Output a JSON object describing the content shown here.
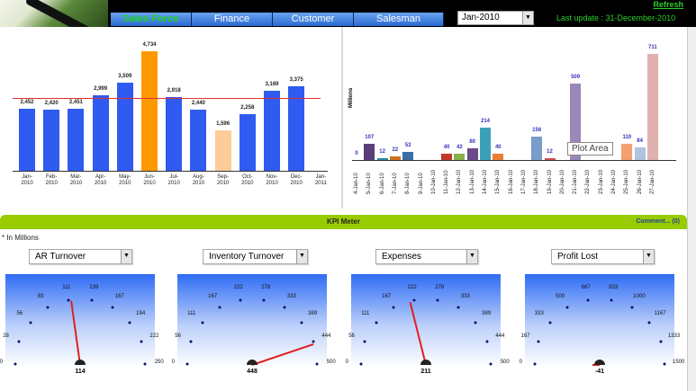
{
  "header": {
    "tabs": [
      {
        "label": "Sales Force",
        "active": true
      },
      {
        "label": "Finance"
      },
      {
        "label": "Customer"
      },
      {
        "label": "Salesman"
      }
    ],
    "month_select": "Jan-2010",
    "refresh_label": "Refresh",
    "last_update": "Last update : 31-December-2010"
  },
  "kpi": {
    "title": "KPI Meter",
    "comment_label": "Comment...",
    "comment_count": "(0)",
    "units_note": "* In Millions",
    "gauges": [
      {
        "select": "AR Turnover",
        "value": "114",
        "ticks": [
          "0",
          "28",
          "56",
          "83",
          "111",
          "139",
          "167",
          "194",
          "222",
          "250"
        ],
        "max": 250,
        "num": 114
      },
      {
        "select": "Inventory Turnover",
        "value": "448",
        "ticks": [
          "0",
          "56",
          "111",
          "167",
          "222",
          "278",
          "333",
          "389",
          "444",
          "500"
        ],
        "max": 500,
        "num": 448
      },
      {
        "select": "Expenses",
        "value": "211",
        "ticks": [
          "0",
          "56",
          "111",
          "167",
          "222",
          "278",
          "333",
          "389",
          "444",
          "500"
        ],
        "max": 500,
        "num": 211
      },
      {
        "select": "Profit Lost",
        "value": "-41",
        "ticks": [
          "0",
          "167",
          "333",
          "500",
          "667",
          "833",
          "1000",
          "1167",
          "1333",
          "1500"
        ],
        "max": 1500,
        "num": -41
      }
    ]
  },
  "tooltip": "Plot Area",
  "chart_data": [
    {
      "type": "bar",
      "title": "",
      "categories": [
        "Jan-2010",
        "Feb-2010",
        "Mar-2010",
        "Apr-2010",
        "May-2010",
        "Jun-2010",
        "Jul-2010",
        "Aug-2010",
        "Sep-2010",
        "Oct-2010",
        "Nov-2010",
        "Dec-2010",
        "Jan-2011"
      ],
      "values": [
        2452,
        2420,
        2451,
        2999,
        3509,
        4734,
        2918,
        2440,
        1596,
        2258,
        3169,
        3375,
        null
      ],
      "labels": [
        "2,452",
        "2,420",
        "2,451",
        "2,999",
        "3,509",
        "4,734",
        "2,918",
        "2,440",
        "1,596",
        "2,258",
        "3,169",
        "3,375",
        ""
      ],
      "colors": [
        "#2f5bf0",
        "#2f5bf0",
        "#2f5bf0",
        "#2f5bf0",
        "#2f5bf0",
        "#ff9900",
        "#2f5bf0",
        "#2f5bf0",
        "#ffcc99",
        "#2f5bf0",
        "#2f5bf0",
        "#2f5bf0",
        ""
      ],
      "reference_line": {
        "value": 2900,
        "color": "#e03030"
      },
      "ylim": [
        0,
        5000
      ]
    },
    {
      "type": "bar",
      "ylabel": "Millions",
      "categories": [
        "4-Jan-10",
        "5-Jan-10",
        "6-Jan-10",
        "7-Jan-10",
        "8-Jan-10",
        "9-Jan-10",
        "10-Jan-10",
        "11-Jan-10",
        "12-Jan-10",
        "13-Jan-10",
        "14-Jan-10",
        "15-Jan-10",
        "16-Jan-10",
        "17-Jan-10",
        "18-Jan-10",
        "19-Jan-10",
        "20-Jan-10",
        "21-Jan-10",
        "22-Jan-10",
        "23-Jan-10",
        "24-Jan-10",
        "25-Jan-10",
        "26-Jan-10",
        "27-Jan-10"
      ],
      "values": [
        0,
        107,
        12,
        22,
        53,
        null,
        null,
        40,
        42,
        80,
        214,
        40,
        null,
        null,
        156,
        12,
        null,
        509,
        null,
        null,
        null,
        110,
        84,
        711
      ],
      "colors": [
        "#5a3e7a",
        "#5a3e7a",
        "#2a8aa0",
        "#d07020",
        "#3a6ea8",
        "",
        "",
        "#c0392b",
        "#8ab04a",
        "#6a4a8a",
        "#3ca0b8",
        "#e88030",
        "",
        "",
        "#7a9cc8",
        "#d05050",
        "#8ab04a",
        "#9a88b8",
        "#3ca0b8",
        "",
        "",
        "#f4a070",
        "#b0c4e0",
        "#e0b0b0"
      ],
      "ylim": [
        0,
        750
      ]
    }
  ]
}
